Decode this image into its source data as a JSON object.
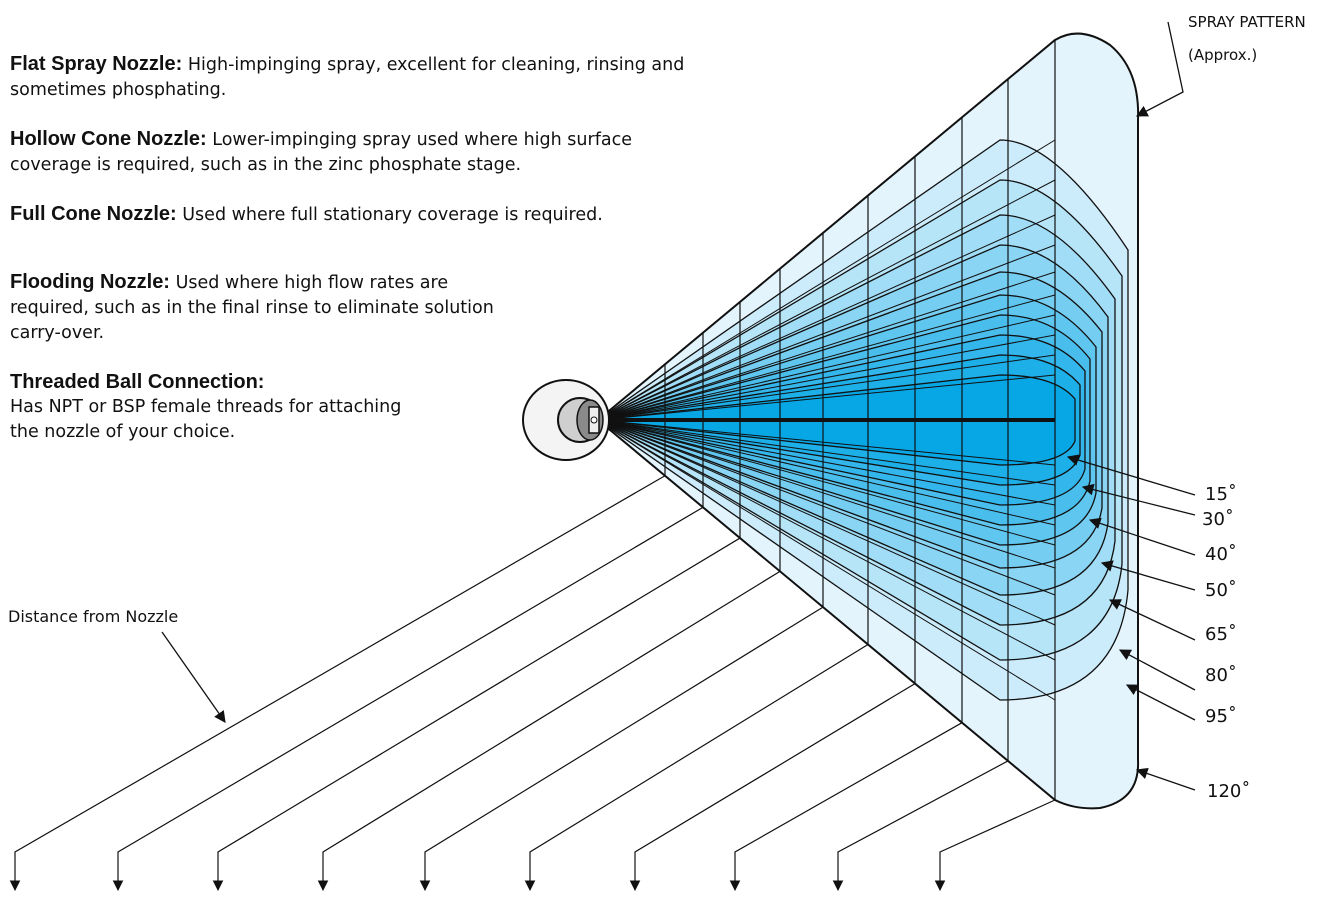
{
  "descriptions": [
    {
      "title": "Flat Spray Nozzle:",
      "text": "High-impinging spray, excellent for cleaning, rinsing and sometimes phosphating."
    },
    {
      "title": "Hollow Cone Nozzle:",
      "text": "Lower-impinging spray used where high surface coverage is required, such as in the zinc phosphate stage."
    },
    {
      "title": "Full Cone Nozzle:",
      "text": "Used where full stationary coverage is required."
    },
    {
      "title": "Flooding Nozzle:",
      "text": "Used where high flow rates are required, such as in the final rinse to eliminate solution carry-over."
    },
    {
      "title": "Threaded Ball Connection:",
      "text": "Has NPT or BSP female threads for attaching the nozzle of your choice."
    }
  ],
  "labels": {
    "distance": "Distance from Nozzle",
    "spray_pattern_line1": "SPRAY PATTERN",
    "spray_pattern_line2": "(Approx.)"
  },
  "angles": [
    "15˚",
    "30˚",
    "40˚",
    "50˚",
    "65˚",
    "80˚",
    "95˚",
    "120˚"
  ],
  "colors": {
    "outline": "#111111",
    "spray_outer": "#e3f4fd",
    "spray_inner": "#07a7e6",
    "nozzle_fill": "#f4f4f4"
  }
}
